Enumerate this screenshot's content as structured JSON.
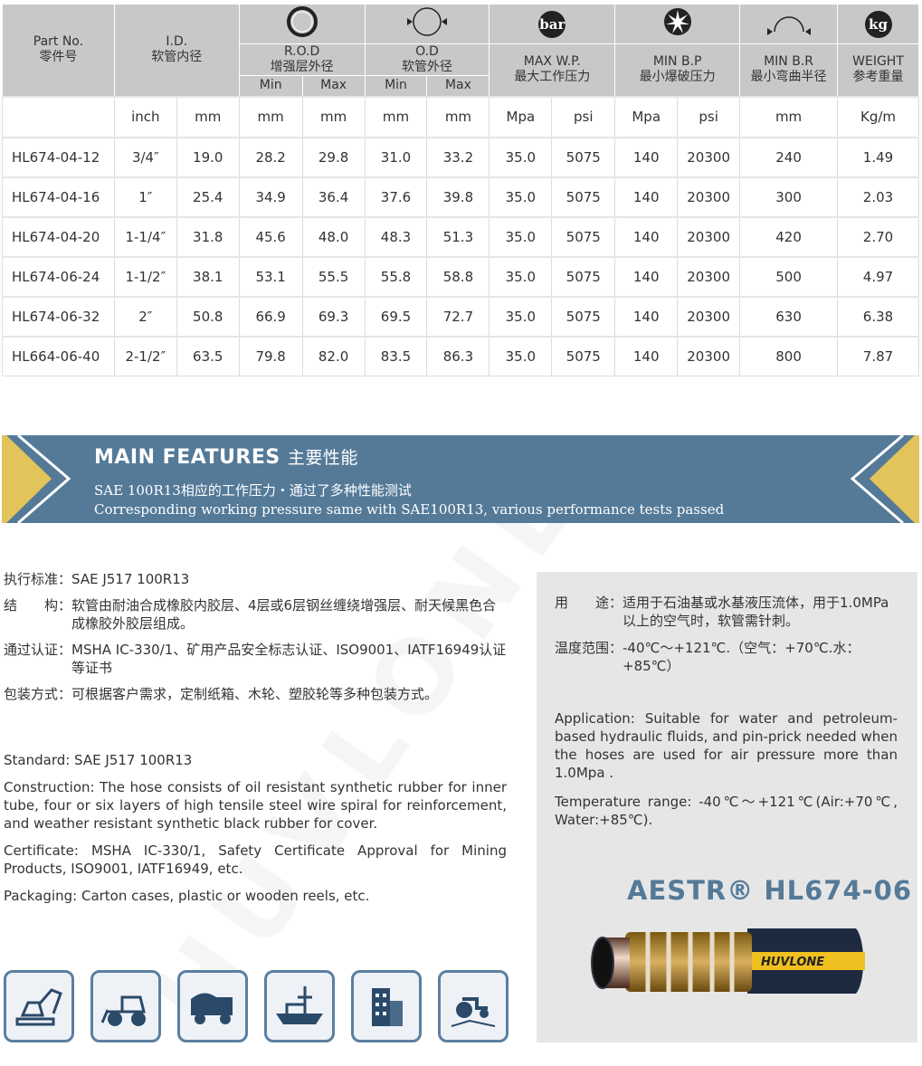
{
  "table": {
    "headers": {
      "part_no": "Part No.",
      "part_no_zh": "零件号",
      "id": "I.D.",
      "id_zh": "软管内径",
      "rod": "R.O.D",
      "rod_zh": "增强层外径",
      "od": "O.D",
      "od_zh": "软管外径",
      "wp": "MAX W.P.",
      "wp_zh": "最大工作压力",
      "bp": "MIN B.P",
      "bp_zh": "最小爆破压力",
      "br": "MIN B.R",
      "br_zh": "最小弯曲半径",
      "wt": "WEIGHT",
      "wt_zh": "参考重量",
      "min": "Min",
      "max": "Max",
      "bar_icon": "bar",
      "kg_icon": "kg"
    },
    "units": [
      "",
      "inch",
      "mm",
      "mm",
      "mm",
      "mm",
      "mm",
      "Mpa",
      "psi",
      "Mpa",
      "psi",
      "mm",
      "Kg/m"
    ],
    "rows": [
      [
        "HL674-04-12",
        "3/4″",
        "19.0",
        "28.2",
        "29.8",
        "31.0",
        "33.2",
        "35.0",
        "5075",
        "140",
        "20300",
        "240",
        "1.49"
      ],
      [
        "HL674-04-16",
        "1″",
        "25.4",
        "34.9",
        "36.4",
        "37.6",
        "39.8",
        "35.0",
        "5075",
        "140",
        "20300",
        "300",
        "2.03"
      ],
      [
        "HL674-04-20",
        "1-1/4″",
        "31.8",
        "45.6",
        "48.0",
        "48.3",
        "51.3",
        "35.0",
        "5075",
        "140",
        "20300",
        "420",
        "2.70"
      ],
      [
        "HL674-06-24",
        "1-1/2″",
        "38.1",
        "53.1",
        "55.5",
        "55.8",
        "58.8",
        "35.0",
        "5075",
        "140",
        "20300",
        "500",
        "4.97"
      ],
      [
        "HL674-06-32",
        "2″",
        "50.8",
        "66.9",
        "69.3",
        "69.5",
        "72.7",
        "35.0",
        "5075",
        "140",
        "20300",
        "630",
        "6.38"
      ],
      [
        "HL664-06-40",
        "2-1/2″",
        "63.5",
        "79.8",
        "82.0",
        "83.5",
        "86.3",
        "35.0",
        "5075",
        "140",
        "20300",
        "800",
        "7.87"
      ]
    ]
  },
  "banner": {
    "title": "MAIN FEATURES",
    "title_zh": "主要性能",
    "line1": "SAE 100R13相应的工作压力・通过了多种性能测试",
    "line2": "Corresponding working pressure same with SAE100R13, various performance tests passed",
    "color": "#547a98",
    "accent": "#e2c45a"
  },
  "left": {
    "zh": [
      {
        "k": "执行标准：",
        "v": "SAE J517 100R13"
      },
      {
        "k": "结　　构：",
        "v": "软管由耐油合成橡胶内胶层、4层或6层钢丝缠绕增强层、耐天候黑色合成橡胶外胶层组成。"
      },
      {
        "k": "通过认证：",
        "v": "MSHA IC-330/1、矿用产品安全标志认证、ISO9001、IATF16949认证等证书"
      },
      {
        "k": "包装方式：",
        "v": "可根据客户需求，定制纸箱、木轮、塑胶轮等多种包装方式。"
      }
    ],
    "en": [
      "Standard: SAE J517 100R13",
      "Construction:  The hose consists of oil resistant synthetic rubber for inner tube, four or six layers of high tensile steel wire spiral for reinforcement, and weather resistant synthetic black rubber for cover.",
      "Certificate:  MSHA  IC-330/1,  Safety  Certificate  Approval  for  Mining Products, ISO9001, IATF16949, etc.",
      "Packaging: Carton cases, plastic or wooden reels, etc."
    ]
  },
  "right": {
    "zh": [
      {
        "k": "用　　途：",
        "v": "适用于石油基或水基液压流体，用于1.0MPa以上的空气时，软管需针刺。"
      },
      {
        "k": "温度范围：",
        "v": "-40℃～+121℃.（空气：+70℃.水：+85℃）"
      }
    ],
    "en": [
      "Application: Suitable for water and petroleum-based hydraulic fluids, and pin-prick needed when the hoses are used for air pressure more than 1.0Mpa .",
      "Temperature range: -40℃～+121℃(Air:+70℃, Water:+85℃)."
    ],
    "product": "AESTR® HL674-06",
    "hose_brand": "HUVLONE"
  },
  "icons": [
    "excavator-icon",
    "wheel-loader-icon",
    "mining-truck-icon",
    "ship-icon",
    "building-icon",
    "tractor-icon"
  ],
  "watermark": "HUVLONE"
}
